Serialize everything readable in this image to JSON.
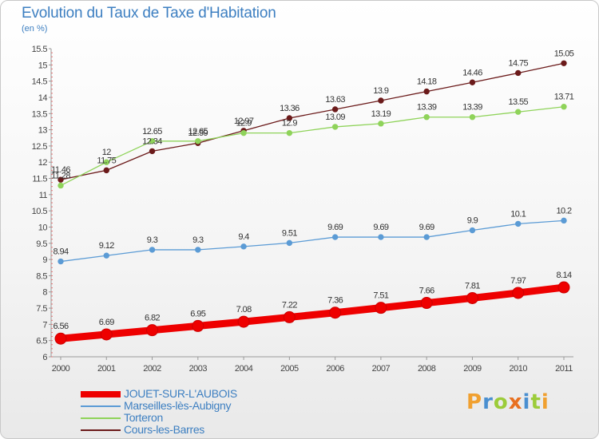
{
  "header": {
    "title": "Evolution du Taux de Taxe d'Habitation",
    "subtitle": "(en %)"
  },
  "logo": {
    "letters": [
      "P",
      "r",
      "o",
      "x",
      "i",
      "t",
      "i"
    ],
    "colors": [
      "#f0a030",
      "#4a8fd0",
      "#9ccc3a",
      "#e87020",
      "#4a8fd0",
      "#9ccc3a",
      "#f0a030"
    ]
  },
  "chart_data": {
    "type": "line",
    "title": "Evolution du Taux de Taxe d'Habitation",
    "ylabel": "(en %)",
    "xlabel": "",
    "x": [
      "2000",
      "2001",
      "2002",
      "2003",
      "2004",
      "2005",
      "2006",
      "2007",
      "2008",
      "2009",
      "2010",
      "2011"
    ],
    "ylim": [
      6,
      15.5
    ],
    "ytick_step": 0.5,
    "grid": false,
    "legend_position": "bottom-left",
    "series": [
      {
        "name": "JOUET-SUR-L'AUBOIS",
        "color": "#ee0000",
        "values": [
          6.56,
          6.69,
          6.82,
          6.95,
          7.08,
          7.22,
          7.36,
          7.51,
          7.66,
          7.81,
          7.97,
          8.14
        ]
      },
      {
        "name": "Marseilles-lès-Aubigny",
        "color": "#5b9bd5",
        "values": [
          8.94,
          9.12,
          9.3,
          9.3,
          9.4,
          9.51,
          9.69,
          9.69,
          9.69,
          9.9,
          10.1,
          10.2
        ]
      },
      {
        "name": "Torteron",
        "color": "#8fd35a",
        "values": [
          11.28,
          12,
          12.65,
          12.65,
          12.9,
          12.9,
          13.09,
          13.19,
          13.39,
          13.39,
          13.55,
          13.71
        ]
      },
      {
        "name": "Cours-les-Barres",
        "color": "#6b1a1a",
        "values": [
          11.46,
          11.75,
          12.34,
          12.59,
          12.97,
          13.36,
          13.63,
          13.9,
          14.18,
          14.46,
          14.75,
          15.05
        ]
      }
    ]
  }
}
